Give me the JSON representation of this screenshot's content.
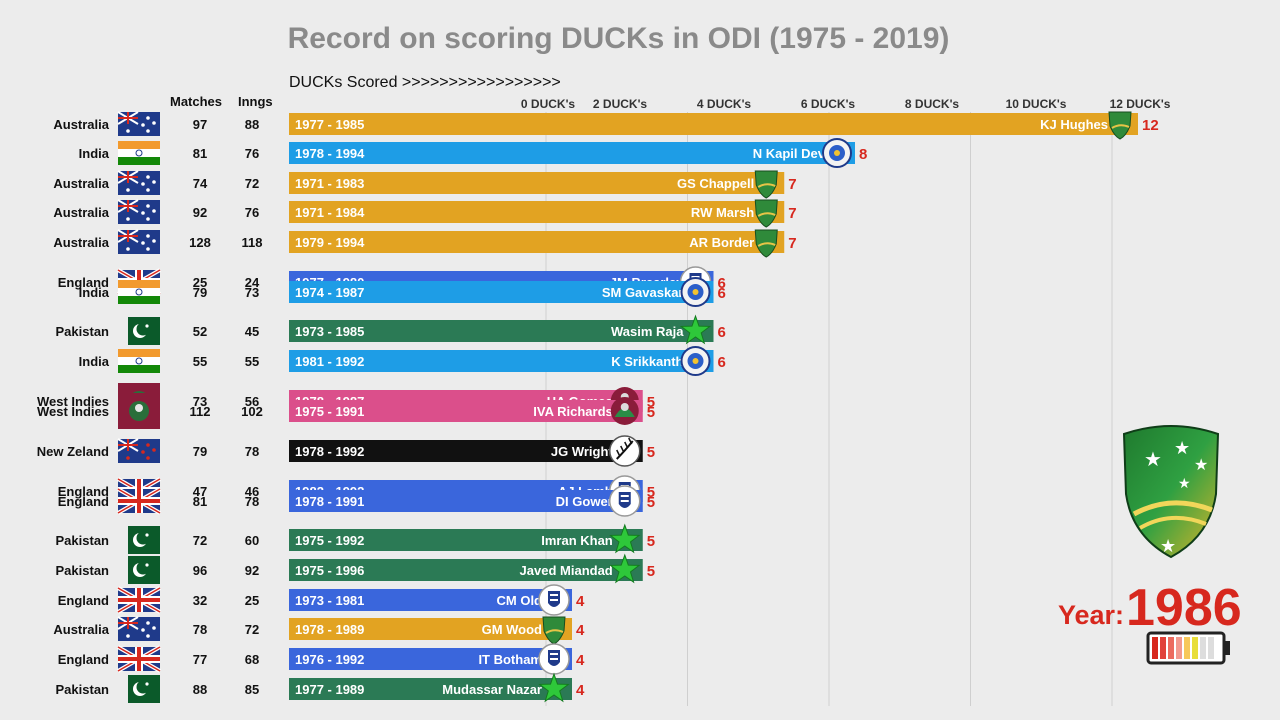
{
  "title": "Record on scoring DUCKs in ODI (1975 - 2019)",
  "axis_caption": "DUCKs Scored >>>>>>>>>>>>>>>>>",
  "column_headers": {
    "matches": "Matches",
    "innings": "Inngs"
  },
  "year_label": "Year:",
  "year_value": "1986",
  "colors": {
    "Australia": "#e2a322",
    "India": "#1e9de6",
    "England": "#3a66dc",
    "Pakistan": "#2b7a55",
    "West Indies": "#db4f8b",
    "New Zeland": "#111111",
    "value_label": "#d7281e"
  },
  "chart_data": {
    "type": "bar",
    "orientation": "horizontal",
    "x_ticks": [
      "0 DUCK's",
      "2 DUCK's",
      "4 DUCK's",
      "6 DUCK's",
      "8 DUCK's",
      "10 DUCK's",
      "12 DUCK's"
    ],
    "grid": true,
    "rows": [
      {
        "country": "Australia",
        "matches": 97,
        "innings": 88,
        "span": "1977 - 1985",
        "player": "KJ Hughes",
        "ducks": 12,
        "emblem": "australia-cap-icon"
      },
      {
        "country": "India",
        "matches": 81,
        "innings": 76,
        "span": "1978 - 1994",
        "player": "N Kapil Dev",
        "ducks": 8,
        "emblem": "bcci-logo-icon"
      },
      {
        "country": "Australia",
        "matches": 74,
        "innings": 72,
        "span": "1971 - 1983",
        "player": "GS Chappell",
        "ducks": 7,
        "emblem": "australia-cap-icon"
      },
      {
        "country": "Australia",
        "matches": 92,
        "innings": 76,
        "span": "1971 - 1984",
        "player": "RW Marsh",
        "ducks": 7,
        "emblem": "australia-cap-icon"
      },
      {
        "country": "Australia",
        "matches": 128,
        "innings": 118,
        "span": "1979 - 1994",
        "player": "AR Border",
        "ducks": 7,
        "emblem": "australia-cap-icon"
      },
      {
        "country": "England",
        "matches": 25,
        "innings": 24,
        "span": "1977 - 1980",
        "player": "JM Brearley",
        "ducks": 6,
        "emblem": "ecb-logo-icon"
      },
      {
        "country": "India",
        "matches": 79,
        "innings": 73,
        "span": "1974 - 1987",
        "player": "SM Gavaskar",
        "ducks": 6,
        "emblem": "bcci-logo-icon"
      },
      {
        "country": "Pakistan",
        "matches": 52,
        "innings": 45,
        "span": "1973 - 1985",
        "player": "Wasim Raja",
        "ducks": 6,
        "emblem": "pcb-star-icon"
      },
      {
        "country": "India",
        "matches": 55,
        "innings": 55,
        "span": "1981 - 1992",
        "player": "K Srikkanth",
        "ducks": 6,
        "emblem": "bcci-logo-icon"
      },
      {
        "country": "West Indies",
        "matches": 73,
        "innings": 56,
        "span": "1978 - 1987",
        "player": "HA Gomes",
        "ducks": 5,
        "emblem": "wicb-logo-icon"
      },
      {
        "country": "West Indies",
        "matches": 112,
        "innings": 102,
        "span": "1975 - 1991",
        "player": "IVA Richards",
        "ducks": 5,
        "emblem": "wicb-logo-icon"
      },
      {
        "country": "New Zeland",
        "matches": 79,
        "innings": 78,
        "span": "1978 - 1992",
        "player": "JG Wright",
        "ducks": 5,
        "emblem": "nzc-fern-icon"
      },
      {
        "country": "England",
        "matches": 47,
        "innings": 46,
        "span": "1982 - 1992",
        "player": "AJ Lamb",
        "ducks": 5,
        "emblem": "ecb-logo-icon"
      },
      {
        "country": "England",
        "matches": 81,
        "innings": 78,
        "span": "1978 - 1991",
        "player": "DI Gower",
        "ducks": 5,
        "emblem": "ecb-logo-icon"
      },
      {
        "country": "Pakistan",
        "matches": 72,
        "innings": 60,
        "span": "1975 - 1992",
        "player": "Imran Khan",
        "ducks": 5,
        "emblem": "pcb-star-icon"
      },
      {
        "country": "Pakistan",
        "matches": 96,
        "innings": 92,
        "span": "1975 - 1996",
        "player": "Javed Miandad",
        "ducks": 5,
        "emblem": "pcb-star-icon"
      },
      {
        "country": "England",
        "matches": 32,
        "innings": 25,
        "span": "1973 - 1981",
        "player": "CM Old",
        "ducks": 4,
        "emblem": "ecb-logo-icon"
      },
      {
        "country": "Australia",
        "matches": 78,
        "innings": 72,
        "span": "1978 - 1989",
        "player": "GM Wood",
        "ducks": 4,
        "emblem": "australia-cap-icon"
      },
      {
        "country": "England",
        "matches": 77,
        "innings": 68,
        "span": "1976 - 1992",
        "player": "IT Botham",
        "ducks": 4,
        "emblem": "ecb-logo-icon"
      },
      {
        "country": "Pakistan",
        "matches": 88,
        "innings": 85,
        "span": "1977 - 1989",
        "player": "Mudassar Nazar",
        "ducks": 4,
        "emblem": "pcb-star-icon"
      }
    ]
  },
  "side_logo": "australia-cap-icon"
}
